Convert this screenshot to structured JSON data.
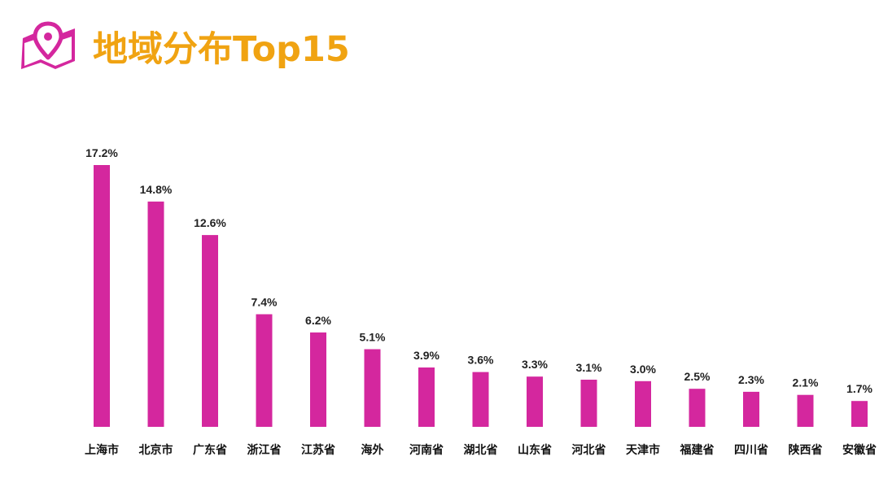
{
  "page": {
    "title": "地域分布Top15",
    "icon": "map-pin-icon",
    "accent_color": "#d4279e",
    "title_color": "#f0a312"
  },
  "chart_data": {
    "type": "bar",
    "title": "地域分布Top15",
    "xlabel": "",
    "ylabel": "",
    "categories": [
      "上海市",
      "北京市",
      "广东省",
      "浙江省",
      "江苏省",
      "海外",
      "河南省",
      "湖北省",
      "山东省",
      "河北省",
      "天津市",
      "福建省",
      "四川省",
      "陕西省",
      "安徽省"
    ],
    "values": [
      17.2,
      14.8,
      12.6,
      7.4,
      6.2,
      5.1,
      3.9,
      3.6,
      3.3,
      3.1,
      3.0,
      2.5,
      2.3,
      2.1,
      1.7
    ],
    "value_labels": [
      "17.2%",
      "14.8%",
      "12.6%",
      "7.4%",
      "6.2%",
      "5.1%",
      "3.9%",
      "3.6%",
      "3.3%",
      "3.1%",
      "3.0%",
      "2.5%",
      "2.3%",
      "2.1%",
      "1.7%"
    ],
    "unit": "%",
    "ylim": [
      0,
      17.2
    ],
    "grid": false,
    "bar_color": "#d4279e"
  }
}
